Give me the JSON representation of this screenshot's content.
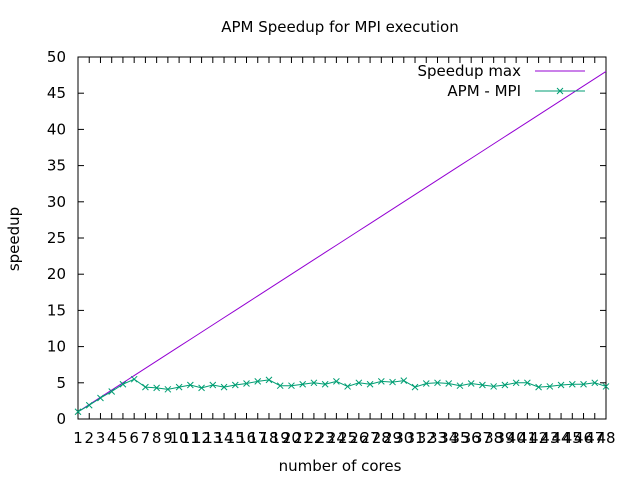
{
  "chart_data": {
    "type": "line",
    "title": "APM Speedup for MPI execution",
    "xlabel": "number of cores",
    "ylabel": "speedup",
    "xlim": [
      1,
      48
    ],
    "ylim": [
      0,
      50
    ],
    "yticks": [
      0,
      5,
      10,
      15,
      20,
      25,
      30,
      35,
      40,
      45,
      50
    ],
    "x": [
      1,
      2,
      3,
      4,
      5,
      6,
      7,
      8,
      9,
      10,
      11,
      12,
      13,
      14,
      15,
      16,
      17,
      18,
      19,
      20,
      21,
      22,
      23,
      24,
      25,
      26,
      27,
      28,
      29,
      30,
      31,
      32,
      33,
      34,
      35,
      36,
      37,
      38,
      39,
      40,
      41,
      42,
      43,
      44,
      45,
      46,
      47,
      48
    ],
    "legend_position": "top-right",
    "series": [
      {
        "name": "Speedup max",
        "color": "#9400d3",
        "marker": "none",
        "values": [
          1,
          2,
          3,
          4,
          5,
          6,
          7,
          8,
          9,
          10,
          11,
          12,
          13,
          14,
          15,
          16,
          17,
          18,
          19,
          20,
          21,
          22,
          23,
          24,
          25,
          26,
          27,
          28,
          29,
          30,
          31,
          32,
          33,
          34,
          35,
          36,
          37,
          38,
          39,
          40,
          41,
          42,
          43,
          44,
          45,
          46,
          47,
          48
        ]
      },
      {
        "name": "APM - MPI",
        "color": "#009e73",
        "marker": "x",
        "values": [
          1.0,
          1.9,
          2.9,
          3.8,
          4.8,
          5.5,
          4.4,
          4.3,
          4.1,
          4.4,
          4.7,
          4.3,
          4.7,
          4.4,
          4.7,
          4.9,
          5.2,
          5.4,
          4.6,
          4.6,
          4.8,
          5.0,
          4.8,
          5.2,
          4.5,
          5.0,
          4.8,
          5.2,
          5.1,
          5.3,
          4.4,
          4.9,
          5.0,
          4.9,
          4.6,
          4.9,
          4.7,
          4.5,
          4.7,
          5.0,
          5.0,
          4.4,
          4.5,
          4.7,
          4.8,
          4.8,
          5.0,
          4.5
        ]
      }
    ]
  }
}
